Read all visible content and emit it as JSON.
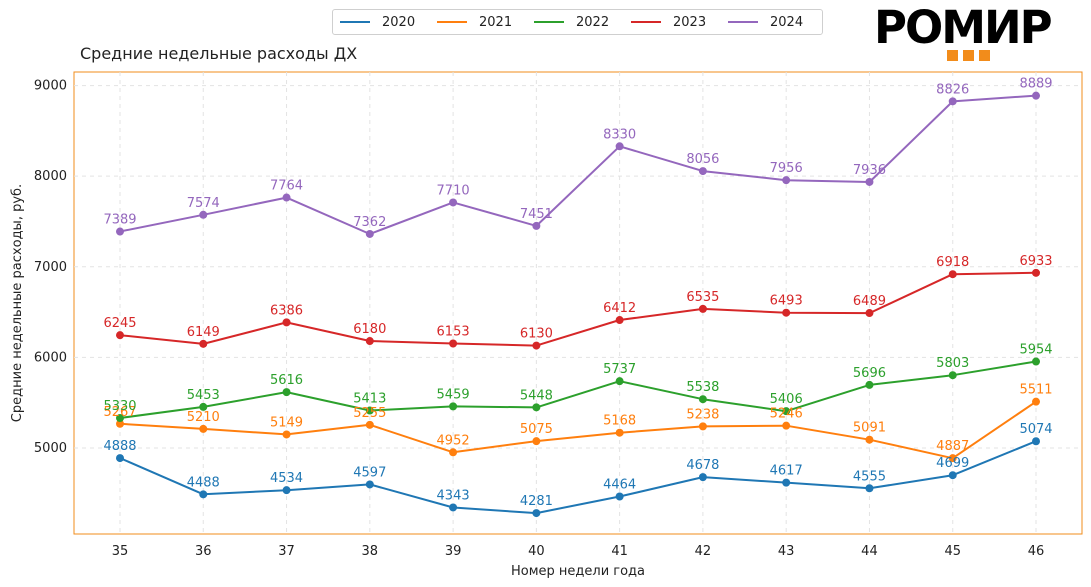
{
  "logo": {
    "text": "РОМИР",
    "accent_color": "#f28c1b"
  },
  "chart_data": {
    "type": "line",
    "title": "Средние недельные расходы ДХ",
    "xlabel": "Номер недели года",
    "ylabel": "Средние недельные расходы, руб.",
    "x": [
      35,
      36,
      37,
      38,
      39,
      40,
      41,
      42,
      43,
      44,
      45,
      46
    ],
    "ylim": [
      4050,
      9150
    ],
    "yticks": [
      5000,
      6000,
      7000,
      8000,
      9000
    ],
    "grid": true,
    "legend_position": "top-center",
    "series": [
      {
        "name": "2020",
        "color": "#1f77b4",
        "values": [
          4888,
          4488,
          4534,
          4597,
          4343,
          4281,
          4464,
          4678,
          4617,
          4555,
          4699,
          5074
        ]
      },
      {
        "name": "2021",
        "color": "#ff7f0e",
        "values": [
          5267,
          5210,
          5149,
          5255,
          4952,
          5075,
          5168,
          5238,
          5246,
          5091,
          4887,
          5511
        ]
      },
      {
        "name": "2022",
        "color": "#2ca02c",
        "values": [
          5330,
          5453,
          5616,
          5413,
          5459,
          5448,
          5737,
          5538,
          5406,
          5696,
          5803,
          5954
        ]
      },
      {
        "name": "2023",
        "color": "#d62728",
        "values": [
          6245,
          6149,
          6386,
          6180,
          6153,
          6130,
          6412,
          6535,
          6493,
          6489,
          6918,
          6933
        ]
      },
      {
        "name": "2024",
        "color": "#9467bd",
        "values": [
          7389,
          7574,
          7764,
          7362,
          7710,
          7451,
          8330,
          8056,
          7956,
          7936,
          8826,
          8889
        ]
      }
    ]
  }
}
